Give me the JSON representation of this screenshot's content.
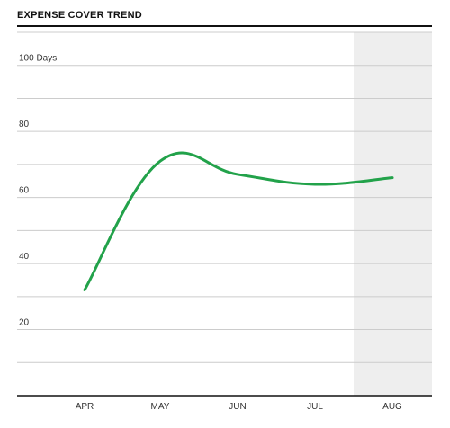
{
  "chart_data": {
    "type": "line",
    "title": "EXPENSE COVER TREND",
    "categories": [
      "APR",
      "MAY",
      "JUN",
      "JUL",
      "AUG"
    ],
    "series": [
      {
        "values": [
          32,
          71,
          67,
          64,
          66
        ]
      }
    ],
    "y_ticks": [
      {
        "value": 20,
        "label": "20"
      },
      {
        "value": 40,
        "label": "40"
      },
      {
        "value": 60,
        "label": "60"
      },
      {
        "value": 80,
        "label": "80"
      },
      {
        "value": 100,
        "label": "100 Days"
      }
    ],
    "ylim": [
      0,
      110
    ],
    "grid": true,
    "highlight_category": "AUG",
    "colors": {
      "line": "#22a24a",
      "grid": "#cccccc",
      "highlight": "#eeeeee",
      "axis": "#111111"
    }
  }
}
